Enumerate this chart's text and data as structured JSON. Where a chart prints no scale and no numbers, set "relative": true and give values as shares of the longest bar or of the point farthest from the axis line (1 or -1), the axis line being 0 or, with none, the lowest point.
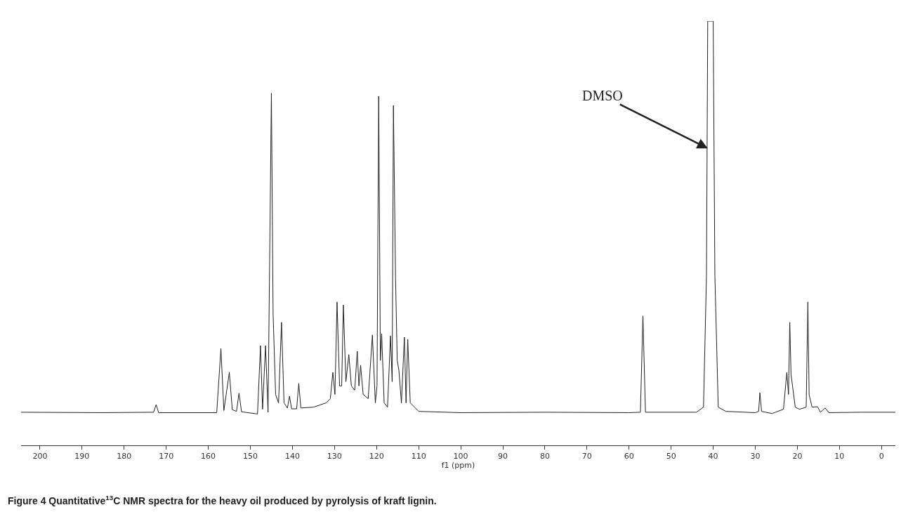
{
  "chart_data": {
    "type": "line",
    "relative": true,
    "xlabel": "f1 (ppm)",
    "xlim": [
      204.5,
      -3.3
    ],
    "xticks": [
      200,
      190,
      180,
      170,
      160,
      150,
      140,
      130,
      120,
      110,
      100,
      90,
      80,
      70,
      60,
      50,
      40,
      30,
      20,
      10,
      0
    ],
    "color": "#222222",
    "x": [
      204.5,
      185,
      173,
      172.4,
      171.8,
      158,
      157,
      156.3,
      155,
      154.3,
      153.3,
      152.7,
      152.1,
      148.3,
      147.6,
      147.1,
      146.4,
      145.8,
      145.0,
      144.6,
      144.0,
      143.3,
      142.6,
      142,
      141.2,
      140.7,
      140.2,
      139,
      138.5,
      138,
      135,
      132,
      131,
      130.4,
      129.9,
      129.4,
      128.8,
      128.3,
      127.9,
      127.3,
      126.6,
      126,
      125.2,
      124.6,
      124.2,
      123.8,
      123.2,
      122,
      121.0,
      120.3,
      119.9,
      119.5,
      119.1,
      118.8,
      118.2,
      117.4,
      116.7,
      116.3,
      116.0,
      115.5,
      115.1,
      114.7,
      114.1,
      113.4,
      113,
      112.6,
      112,
      110,
      100,
      80,
      60,
      57.3,
      56.7,
      56.1,
      44,
      42.3,
      41.6,
      41.3,
      40.0,
      39.6,
      38.8,
      37,
      30,
      29.2,
      28.9,
      28.5,
      26,
      23.3,
      22.5,
      22.1,
      21.8,
      21.5,
      20.5,
      19.5,
      17.9,
      17.5,
      17.2,
      16.5,
      15.2,
      14.5,
      13.4,
      12.5,
      5,
      -3.3
    ],
    "values": [
      0.078,
      0.077,
      0.078,
      0.096,
      0.077,
      0.077,
      0.228,
      0.082,
      0.172,
      0.084,
      0.08,
      0.123,
      0.079,
      0.074,
      0.235,
      0.085,
      0.235,
      0.078,
      0.83,
      0.31,
      0.12,
      0.1,
      0.29,
      0.1,
      0.088,
      0.116,
      0.086,
      0.086,
      0.146,
      0.088,
      0.09,
      0.1,
      0.11,
      0.172,
      0.12,
      0.338,
      0.14,
      0.14,
      0.331,
      0.15,
      0.214,
      0.14,
      0.13,
      0.222,
      0.14,
      0.189,
      0.12,
      0.11,
      0.26,
      0.1,
      0.14,
      0.823,
      0.2,
      0.263,
      0.1,
      0.09,
      0.258,
      0.15,
      0.801,
      0.396,
      0.2,
      0.177,
      0.1,
      0.255,
      0.1,
      0.25,
      0.1,
      0.08,
      0.077,
      0.078,
      0.077,
      0.078,
      0.305,
      0.078,
      0.078,
      0.09,
      0.4,
      1,
      1,
      0.4,
      0.09,
      0.08,
      0.077,
      0.08,
      0.124,
      0.08,
      0.075,
      0.085,
      0.172,
      0.12,
      0.29,
      0.167,
      0.09,
      0.085,
      0.09,
      0.338,
      0.119,
      0.09,
      0.091,
      0.078,
      0.088,
      0.077,
      0.078,
      0.078
    ],
    "annotations": [
      {
        "text": "DMSO",
        "x": 41.3,
        "y": 0.7
      },
      "Figure 4 Quantitative$^{13}$C NMR spectra for the heavy oil produced by pyrolysis of kraft lignin."
    ]
  }
}
